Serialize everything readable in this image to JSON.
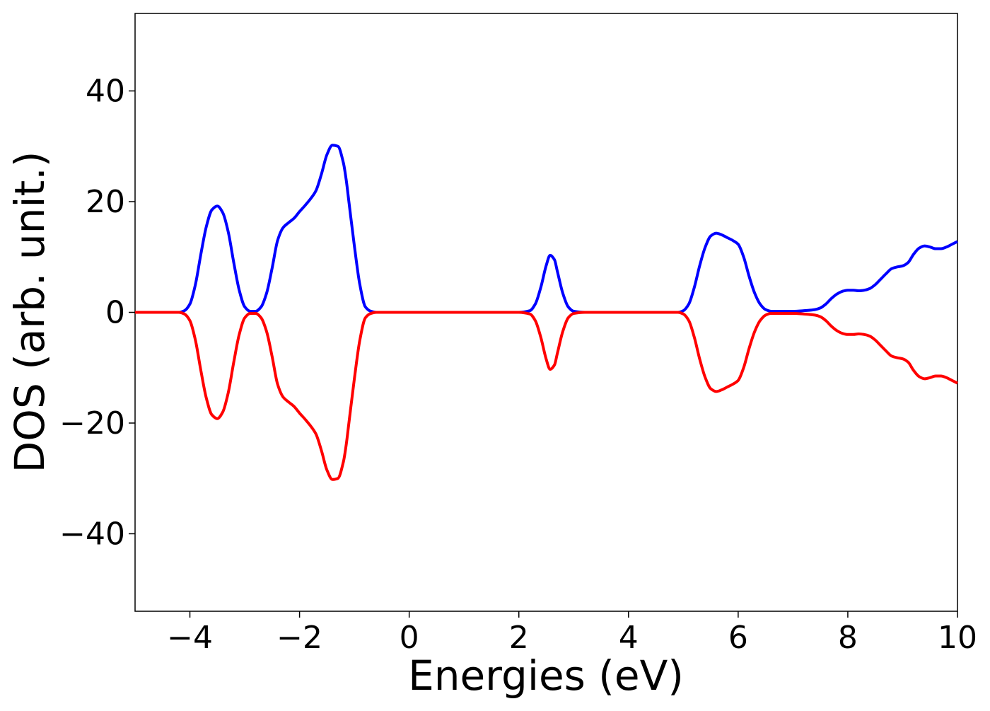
{
  "chart_data": {
    "type": "line",
    "title": "",
    "xlabel": "Energies (eV)",
    "ylabel": "DOS (arb. unit.)",
    "xlim": [
      -5,
      10
    ],
    "ylim": [
      -54,
      54
    ],
    "xticks": [
      -4,
      -2,
      0,
      2,
      4,
      6,
      8,
      10
    ],
    "xtick_labels": [
      "−4",
      "−2",
      "0",
      "2",
      "4",
      "6",
      "8",
      "10"
    ],
    "yticks": [
      -40,
      -20,
      0,
      20,
      40
    ],
    "ytick_labels": [
      "−40",
      "−20",
      "0",
      "20",
      "40"
    ],
    "grid": false,
    "legend": "none",
    "series": [
      {
        "color": "#0000ff",
        "x": [
          -5,
          -4.4,
          -4.2,
          -4.1,
          -4.0,
          -3.9,
          -3.8,
          -3.7,
          -3.6,
          -3.5,
          -3.4,
          -3.3,
          -3.2,
          -3.1,
          -3.0,
          -2.9,
          -2.8,
          -2.7,
          -2.6,
          -2.5,
          -2.4,
          -2.3,
          -2.2,
          -2.1,
          -2.0,
          -1.9,
          -1.8,
          -1.7,
          -1.6,
          -1.5,
          -1.4,
          -1.3,
          -1.2,
          -1.15,
          -1.1,
          -1.0,
          -0.9,
          -0.8,
          -0.7,
          -0.6,
          -0.5,
          0,
          1.0,
          2.0,
          2.2,
          2.3,
          2.4,
          2.5,
          2.57,
          2.65,
          2.7,
          2.8,
          2.9,
          3.0,
          3.2,
          4.0,
          4.6,
          4.9,
          5.0,
          5.1,
          5.2,
          5.3,
          5.4,
          5.5,
          5.6,
          5.7,
          5.8,
          5.9,
          6.0,
          6.1,
          6.2,
          6.3,
          6.4,
          6.5,
          6.6,
          6.7,
          6.8,
          7.0,
          7.2,
          7.4,
          7.5,
          7.6,
          7.7,
          7.8,
          7.9,
          8.0,
          8.1,
          8.2,
          8.3,
          8.4,
          8.5,
          8.6,
          8.7,
          8.8,
          8.9,
          9.0,
          9.1,
          9.2,
          9.3,
          9.4,
          9.5,
          9.6,
          9.7,
          9.8,
          9.9,
          10.0
        ],
        "y": [
          0,
          0,
          0,
          0.3,
          1.5,
          5.0,
          10.5,
          15.5,
          18.5,
          19.2,
          18.0,
          14.5,
          9.0,
          4.0,
          1.0,
          0.2,
          0.2,
          1.0,
          3.5,
          8.0,
          13.0,
          15.3,
          16.2,
          17.0,
          18.2,
          19.3,
          20.5,
          22.0,
          25.0,
          28.5,
          30.2,
          30.0,
          27.0,
          24.0,
          20.0,
          12.0,
          5.0,
          1.0,
          0.2,
          0,
          0,
          0,
          0,
          0,
          0.3,
          1.5,
          4.5,
          8.5,
          10.3,
          9.5,
          7.5,
          3.5,
          1.0,
          0.2,
          0,
          0,
          0,
          0,
          0.3,
          1.5,
          4.5,
          8.5,
          11.8,
          13.8,
          14.3,
          14.0,
          13.5,
          13.0,
          12.3,
          10.0,
          6.5,
          3.5,
          1.5,
          0.5,
          0.2,
          0.2,
          0.2,
          0.2,
          0.3,
          0.5,
          0.8,
          1.5,
          2.5,
          3.3,
          3.8,
          4.0,
          4.0,
          3.9,
          4.0,
          4.3,
          5.0,
          6.0,
          7.0,
          7.9,
          8.2,
          8.4,
          9.0,
          10.5,
          11.6,
          12.0,
          11.8,
          11.5,
          11.5,
          11.8,
          12.3,
          12.8
        ]
      },
      {
        "color": "#ff0000",
        "x": [
          -5,
          -4.4,
          -4.2,
          -4.1,
          -4.0,
          -3.9,
          -3.8,
          -3.7,
          -3.6,
          -3.5,
          -3.4,
          -3.3,
          -3.2,
          -3.1,
          -3.0,
          -2.9,
          -2.8,
          -2.7,
          -2.6,
          -2.5,
          -2.4,
          -2.3,
          -2.2,
          -2.1,
          -2.0,
          -1.9,
          -1.8,
          -1.7,
          -1.6,
          -1.5,
          -1.4,
          -1.3,
          -1.2,
          -1.15,
          -1.1,
          -1.0,
          -0.9,
          -0.8,
          -0.7,
          -0.6,
          -0.5,
          0,
          1.0,
          2.0,
          2.2,
          2.3,
          2.4,
          2.5,
          2.57,
          2.65,
          2.7,
          2.8,
          2.9,
          3.0,
          3.2,
          4.0,
          4.6,
          4.9,
          5.0,
          5.1,
          5.2,
          5.3,
          5.4,
          5.5,
          5.6,
          5.7,
          5.8,
          5.9,
          6.0,
          6.1,
          6.2,
          6.3,
          6.4,
          6.5,
          6.6,
          6.7,
          6.8,
          7.0,
          7.2,
          7.4,
          7.5,
          7.6,
          7.7,
          7.8,
          7.9,
          8.0,
          8.1,
          8.2,
          8.3,
          8.4,
          8.5,
          8.6,
          8.7,
          8.8,
          8.9,
          9.0,
          9.1,
          9.2,
          9.3,
          9.4,
          9.5,
          9.6,
          9.7,
          9.8,
          9.9,
          10.0
        ],
        "y": [
          0,
          0,
          0,
          -0.3,
          -1.5,
          -5.0,
          -10.5,
          -15.5,
          -18.5,
          -19.2,
          -18.0,
          -14.5,
          -9.0,
          -4.0,
          -1.0,
          -0.2,
          -0.2,
          -1.0,
          -3.5,
          -8.0,
          -13.0,
          -15.3,
          -16.2,
          -17.0,
          -18.2,
          -19.3,
          -20.5,
          -22.0,
          -25.0,
          -28.5,
          -30.2,
          -30.0,
          -27.0,
          -24.0,
          -20.0,
          -12.0,
          -5.0,
          -1.0,
          -0.2,
          0,
          0,
          0,
          0,
          0,
          -0.3,
          -1.5,
          -4.5,
          -8.5,
          -10.3,
          -9.5,
          -7.5,
          -3.5,
          -1.0,
          -0.2,
          0,
          0,
          0,
          0,
          -0.3,
          -1.5,
          -4.5,
          -8.5,
          -11.8,
          -13.8,
          -14.3,
          -14.0,
          -13.5,
          -13.0,
          -12.3,
          -10.0,
          -6.5,
          -3.5,
          -1.5,
          -0.5,
          -0.2,
          -0.2,
          -0.2,
          -0.2,
          -0.3,
          -0.5,
          -0.8,
          -1.5,
          -2.5,
          -3.3,
          -3.8,
          -4.0,
          -4.0,
          -3.9,
          -4.0,
          -4.3,
          -5.0,
          -6.0,
          -7.0,
          -7.9,
          -8.2,
          -8.4,
          -9.0,
          -10.5,
          -11.6,
          -12.0,
          -11.8,
          -11.5,
          -11.5,
          -11.8,
          -12.3,
          -12.8
        ]
      }
    ]
  }
}
